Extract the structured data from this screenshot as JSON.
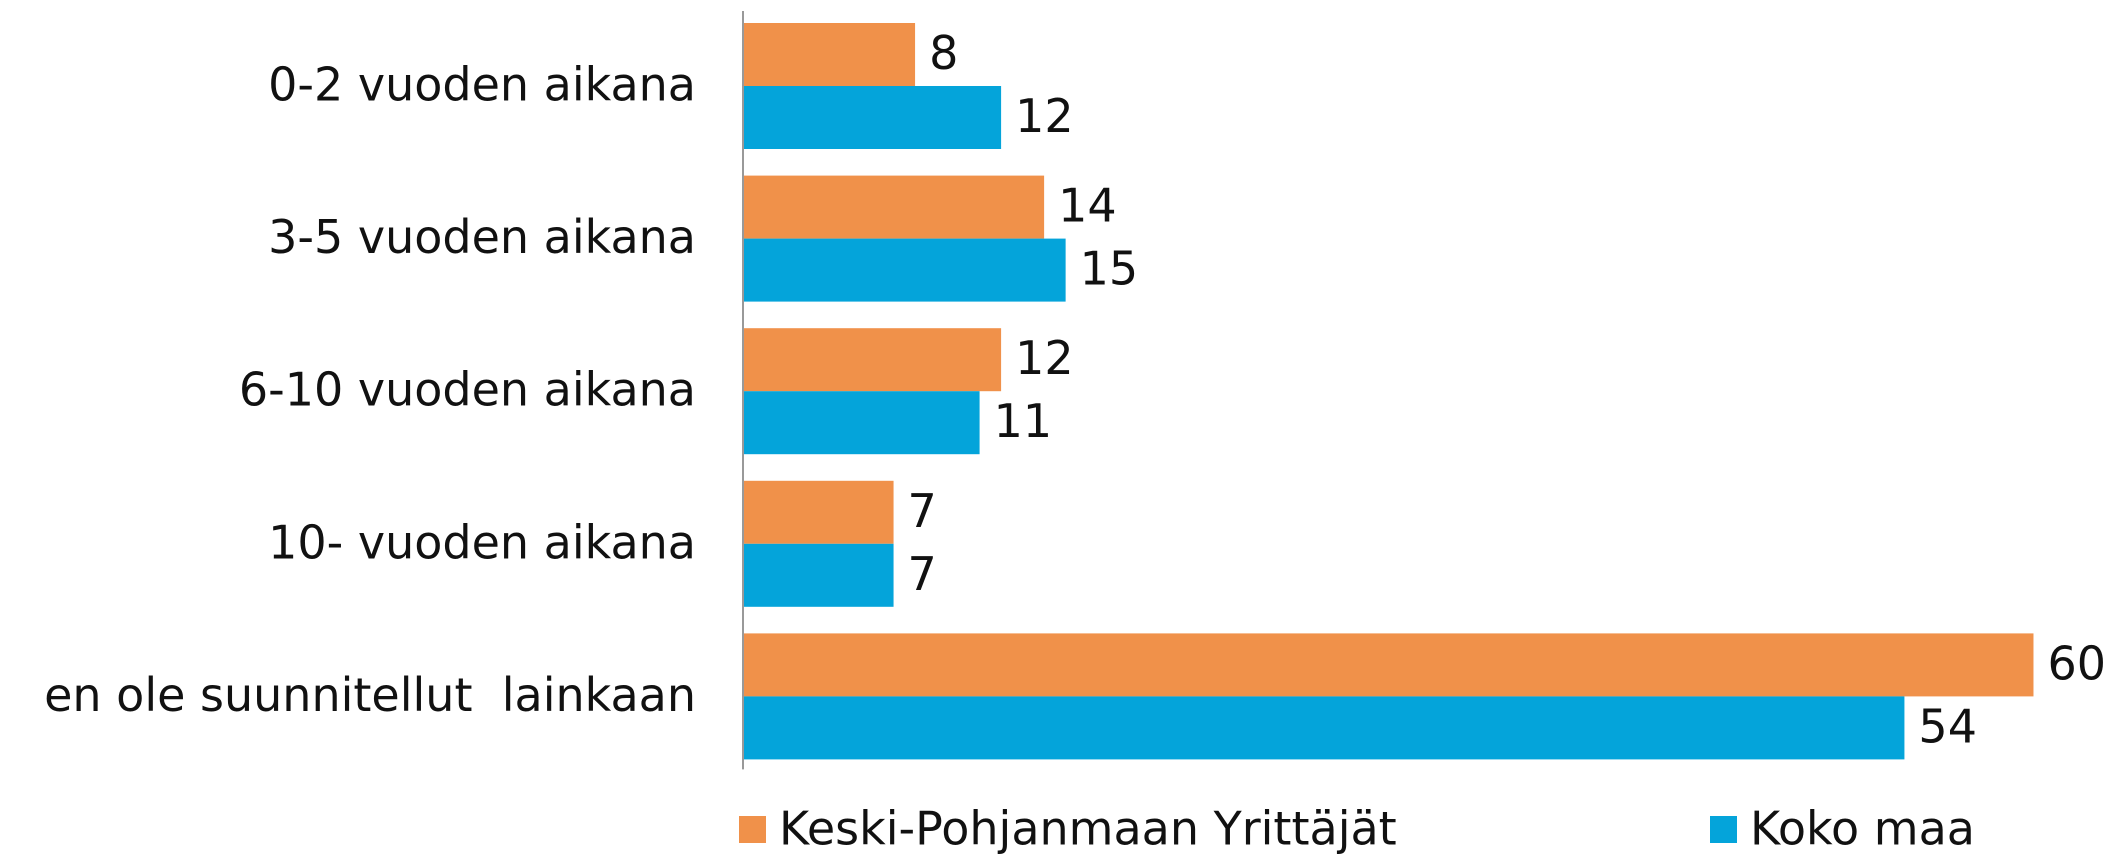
{
  "chart_data": {
    "type": "hbar",
    "categories": [
      "0-2 vuoden aikana",
      "3-5 vuoden aikana",
      "6-10 vuoden aikana",
      "10- vuoden aikana",
      "en ole suunnitellut  lainkaan"
    ],
    "series": [
      {
        "name": "Keski-Pohjanmaan Yrittäjät",
        "color": "#f0914a",
        "values": [
          8,
          14,
          12,
          7,
          60
        ]
      },
      {
        "name": "Koko maa",
        "color": "#04a4da",
        "values": [
          12,
          15,
          11,
          7,
          54
        ]
      }
    ],
    "xlim": [
      0,
      63
    ],
    "legend": "bottom"
  }
}
